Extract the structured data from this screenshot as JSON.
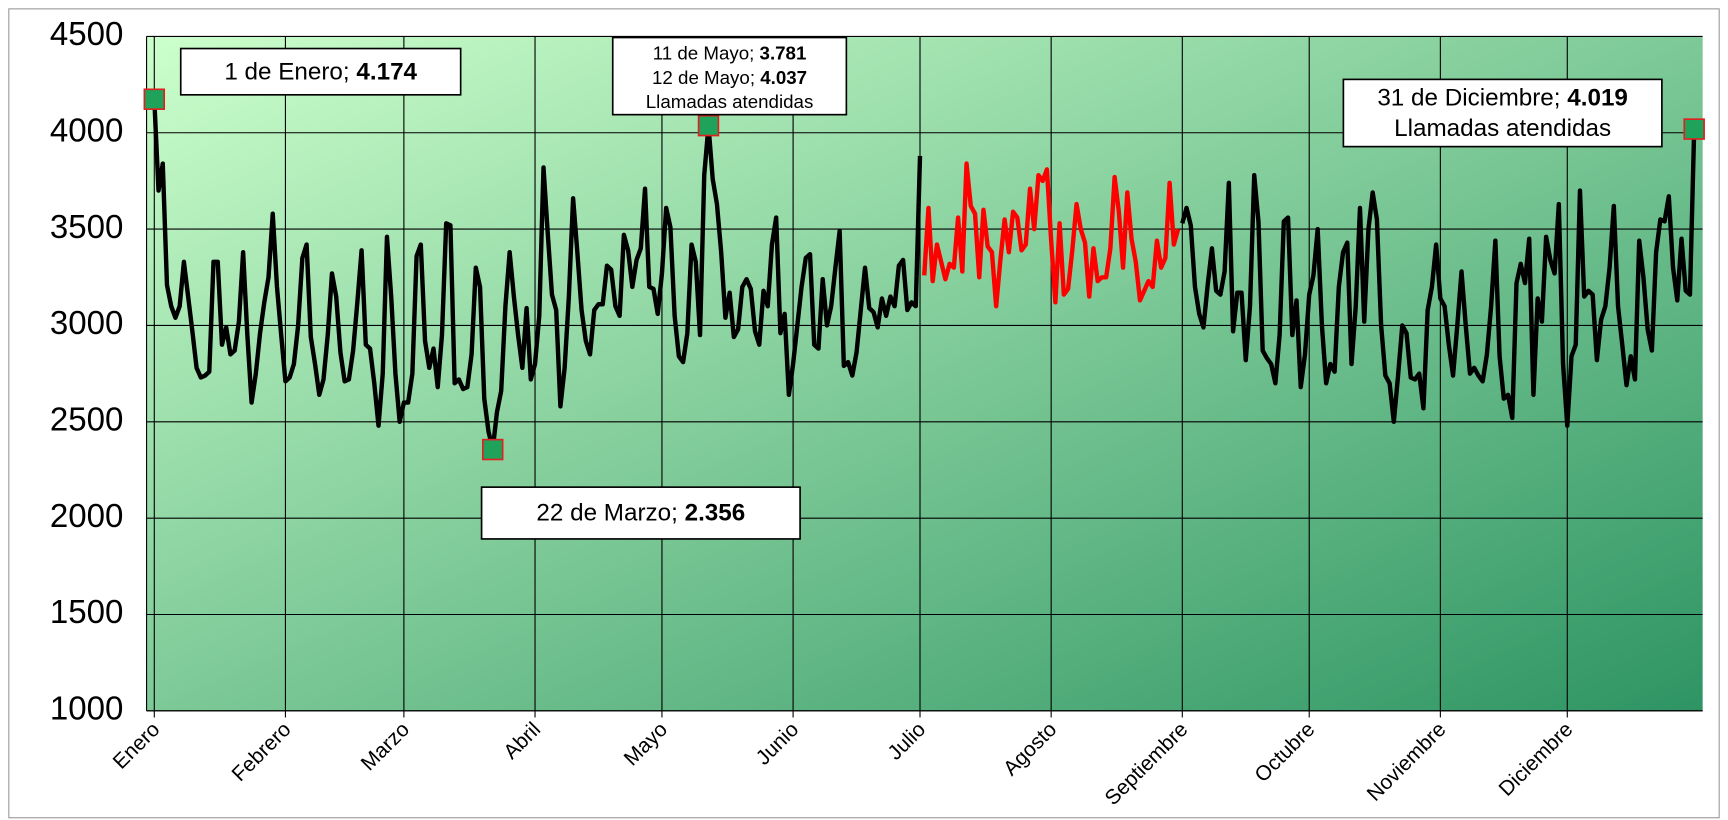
{
  "chart_data": {
    "type": "line",
    "ylim": [
      1000,
      4500
    ],
    "yticks": [
      1000,
      1500,
      2000,
      2500,
      3000,
      3500,
      4000,
      4500
    ],
    "xlim": [
      1,
      367
    ],
    "xticks": [
      {
        "value": 1,
        "label": "Enero"
      },
      {
        "value": 32,
        "label": "Febrero"
      },
      {
        "value": 60,
        "label": "Marzo"
      },
      {
        "value": 91,
        "label": "Abril"
      },
      {
        "value": 121,
        "label": "Mayo"
      },
      {
        "value": 152,
        "label": "Junio"
      },
      {
        "value": 182,
        "label": "Julio"
      },
      {
        "value": 213,
        "label": "Agosto"
      },
      {
        "value": 244,
        "label": "Septiembre"
      },
      {
        "value": 274,
        "label": "Octubre"
      },
      {
        "value": 305,
        "label": "Noviembre"
      },
      {
        "value": 335,
        "label": "Diciembre"
      }
    ],
    "grid": true,
    "series": [
      {
        "color": "#000000",
        "markers": [
          0,
          80,
          131,
          364
        ],
        "values": [
          4174,
          3700,
          3840,
          3210,
          3100,
          3040,
          3100,
          3330,
          3150,
          2970,
          2780,
          2730,
          2740,
          2760,
          3330,
          3330,
          2900,
          2990,
          2850,
          2870,
          3020,
          3380,
          2950,
          2600,
          2750,
          2960,
          3120,
          3250,
          3580,
          3200,
          2950,
          2710,
          2730,
          2800,
          3000,
          3350,
          3420,
          2940,
          2800,
          2640,
          2720,
          2950,
          3270,
          3150,
          2860,
          2710,
          2720,
          2870,
          3120,
          3390,
          2900,
          2880,
          2700,
          2480,
          2750,
          3460,
          3150,
          2750,
          2500,
          2600,
          2600,
          2750,
          3360,
          3420,
          2920,
          2780,
          2880,
          2680,
          2950,
          3530,
          3520,
          2700,
          2720,
          2670,
          2680,
          2850,
          3300,
          3200,
          2620,
          2450,
          2356,
          2550,
          2660,
          3100,
          3380,
          3150,
          2950,
          2780,
          3090,
          2720,
          2800,
          3050,
          3820,
          3480,
          3160,
          3080,
          2580,
          2780,
          3150,
          3660,
          3380,
          3080,
          2920,
          2850,
          3080,
          3110,
          3110,
          3310,
          3290,
          3100,
          3050,
          3470,
          3390,
          3200,
          3340,
          3400,
          3710,
          3200,
          3190,
          3060,
          3270,
          3610,
          3510,
          3050,
          2840,
          2810,
          2960,
          3420,
          3330,
          2950,
          3781,
          4037,
          3760,
          3630,
          3380,
          3040,
          3170,
          2940,
          2980,
          3200,
          3240,
          3190,
          2970,
          2900,
          3180,
          3100,
          3420,
          3560,
          2960,
          3060,
          2640,
          2800,
          3000,
          3200,
          3350,
          3370,
          2900,
          2880,
          3240,
          3000,
          3100,
          3300,
          3490,
          2790,
          2810,
          2740,
          2860,
          3080,
          3300,
          3090,
          3070,
          2990,
          3140,
          3050,
          3150,
          3100,
          3310,
          3340,
          3080,
          3120,
          3100,
          3880,
          null,
          null,
          null,
          null,
          null,
          null,
          null,
          null,
          null,
          null,
          null,
          null,
          null,
          null,
          null,
          null,
          null,
          null,
          null,
          null,
          null,
          null,
          null,
          null,
          null,
          null,
          null,
          null,
          null,
          null,
          null,
          null,
          null,
          null,
          null,
          null,
          null,
          null,
          null,
          null,
          null,
          null,
          null,
          null,
          null,
          null,
          null,
          null,
          null,
          null,
          null,
          null,
          null,
          null,
          null,
          null,
          null,
          null,
          null,
          null,
          null,
          3530,
          3610,
          3520,
          3200,
          3060,
          2990,
          3210,
          3400,
          3180,
          3160,
          3280,
          3740,
          2970,
          3170,
          3170,
          2820,
          3100,
          3780,
          3540,
          2870,
          2830,
          2800,
          2700,
          2950,
          3540,
          3560,
          2950,
          3130,
          2680,
          2850,
          3160,
          3260,
          3500,
          3000,
          2700,
          2800,
          2760,
          3200,
          3380,
          3430,
          2800,
          3100,
          3610,
          3020,
          3500,
          3690,
          3550,
          3000,
          2740,
          2700,
          2500,
          2740,
          3000,
          2960,
          2730,
          2720,
          2750,
          2570,
          3080,
          3200,
          3420,
          3140,
          3100,
          2900,
          2740,
          3000,
          3280,
          3000,
          2750,
          2780,
          2740,
          2710,
          2850,
          3100,
          3440,
          2840,
          2620,
          2640,
          2520,
          3220,
          3320,
          3220,
          3450,
          2640,
          3140,
          3020,
          3460,
          3340,
          3270,
          3630,
          2800,
          2480,
          2840,
          2900,
          3700,
          3150,
          3180,
          3160,
          2820,
          3030,
          3100,
          3300,
          3620,
          3100,
          2900,
          2690,
          2840,
          2720,
          3440,
          3250,
          2980,
          2870,
          3380,
          3550,
          3540,
          3670,
          3300,
          3130,
          3450,
          3180,
          3160,
          4019
        ]
      },
      {
        "color": "#ff0000",
        "values": [
          null,
          null,
          null,
          null,
          null,
          null,
          null,
          null,
          null,
          null,
          null,
          null,
          null,
          null,
          null,
          null,
          null,
          null,
          null,
          null,
          null,
          null,
          null,
          null,
          null,
          null,
          null,
          null,
          null,
          null,
          null,
          null,
          null,
          null,
          null,
          null,
          null,
          null,
          null,
          null,
          null,
          null,
          null,
          null,
          null,
          null,
          null,
          null,
          null,
          null,
          null,
          null,
          null,
          null,
          null,
          null,
          null,
          null,
          null,
          null,
          null,
          null,
          null,
          null,
          null,
          null,
          null,
          null,
          null,
          null,
          null,
          null,
          null,
          null,
          null,
          null,
          null,
          null,
          null,
          null,
          null,
          null,
          null,
          null,
          null,
          null,
          null,
          null,
          null,
          null,
          null,
          null,
          null,
          null,
          null,
          null,
          null,
          null,
          null,
          null,
          null,
          null,
          null,
          null,
          null,
          null,
          null,
          null,
          null,
          null,
          null,
          null,
          null,
          null,
          null,
          null,
          null,
          null,
          null,
          null,
          null,
          null,
          null,
          null,
          null,
          null,
          null,
          null,
          null,
          null,
          null,
          null,
          null,
          null,
          null,
          null,
          null,
          null,
          null,
          null,
          null,
          null,
          null,
          null,
          null,
          null,
          null,
          null,
          null,
          null,
          null,
          null,
          null,
          null,
          null,
          null,
          null,
          null,
          null,
          null,
          null,
          null,
          null,
          null,
          null,
          null,
          null,
          null,
          null,
          null,
          null,
          null,
          null,
          null,
          null,
          null,
          null,
          null,
          null,
          null,
          null,
          null,
          3260,
          3610,
          3230,
          3420,
          3330,
          3240,
          3320,
          3300,
          3560,
          3280,
          3840,
          3620,
          3580,
          3250,
          3600,
          3410,
          3380,
          3100,
          3340,
          3550,
          3380,
          3590,
          3560,
          3390,
          3420,
          3710,
          3500,
          3780,
          3750,
          3810,
          3440,
          3120,
          3530,
          3160,
          3190,
          3390,
          3630,
          3500,
          3430,
          3150,
          3400,
          3230,
          3250,
          3250,
          3400,
          3770,
          3590,
          3300,
          3690,
          3450,
          3330,
          3130,
          3180,
          3230,
          3200,
          3440,
          3300,
          3350,
          3740,
          3420,
          3500,
          null,
          null,
          null,
          null,
          null,
          null,
          null,
          null,
          null,
          null,
          null,
          null,
          null,
          null,
          null,
          null,
          null,
          null,
          null,
          null,
          null,
          null,
          null,
          null,
          null,
          null,
          null,
          null,
          null,
          null,
          null,
          null,
          null,
          null,
          null,
          null,
          null,
          null,
          null,
          null,
          null,
          null,
          null,
          null,
          null,
          null,
          null,
          null,
          null,
          null,
          null,
          null,
          null,
          null,
          null,
          null,
          null,
          null,
          null,
          null,
          null,
          null,
          null,
          null,
          null,
          null,
          null,
          null,
          null,
          null,
          null,
          null,
          null,
          null,
          null,
          null,
          null,
          null,
          null,
          null,
          null,
          null,
          null,
          null,
          null,
          null,
          null,
          null,
          null,
          null,
          null,
          null,
          null,
          null,
          null,
          null,
          null,
          null,
          null,
          null,
          null,
          null,
          null,
          null,
          null,
          null,
          null,
          null,
          null,
          null,
          null,
          null,
          null,
          null,
          null,
          null,
          null,
          null,
          null,
          null,
          null,
          null
        ]
      }
    ],
    "annotations": [
      {
        "lines": [
          {
            "text": "1 de Enero; ",
            "bold": "4.174"
          }
        ]
      },
      {
        "lines": [
          {
            "text": "11 de Mayo; ",
            "bold": "3.781"
          },
          {
            "text": "12 de Mayo; ",
            "bold": "4.037"
          },
          {
            "text": "Llamadas atendidas"
          }
        ]
      },
      {
        "lines": [
          {
            "text": "22 de Marzo; ",
            "bold": "2.356"
          }
        ]
      },
      {
        "lines": [
          {
            "text": "31 de Diciembre; ",
            "bold": "4.019"
          },
          {
            "text": "Llamadas atendidas"
          }
        ]
      }
    ]
  }
}
